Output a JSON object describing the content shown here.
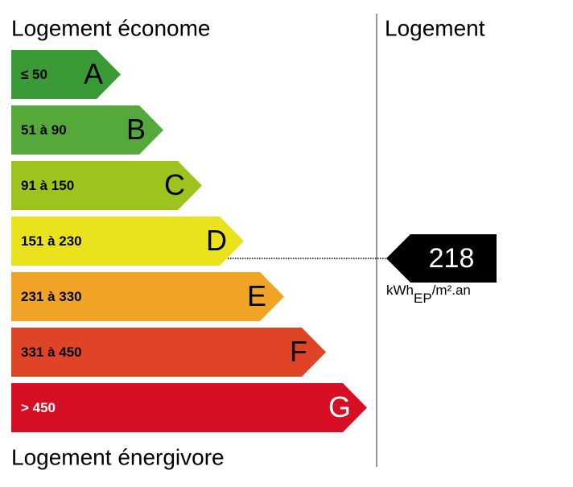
{
  "header": {
    "left_title": "Logement économe",
    "right_title": "Logement",
    "bottom_title": "Logement énergivore"
  },
  "classes": [
    {
      "range": "≤ 50",
      "letter": "A",
      "color": "#3a9a35",
      "text_color": "#000"
    },
    {
      "range": "51 à 90",
      "letter": "B",
      "color": "#55a83a",
      "text_color": "#000"
    },
    {
      "range": "91 à 150",
      "letter": "C",
      "color": "#9dc31d",
      "text_color": "#000"
    },
    {
      "range": "151 à 230",
      "letter": "D",
      "color": "#eae21c",
      "text_color": "#000"
    },
    {
      "range": "231 à 330",
      "letter": "E",
      "color": "#f0a324",
      "text_color": "#000"
    },
    {
      "range": "331 à 450",
      "letter": "F",
      "color": "#e04426",
      "text_color": "#000"
    },
    {
      "range": "> 450",
      "letter": "G",
      "color": "#d70f24",
      "text_color": "#fff"
    }
  ],
  "indicator": {
    "value": 218,
    "unit_main": "kWh",
    "unit_sub": "EP",
    "unit_rest": "/m².an"
  }
}
